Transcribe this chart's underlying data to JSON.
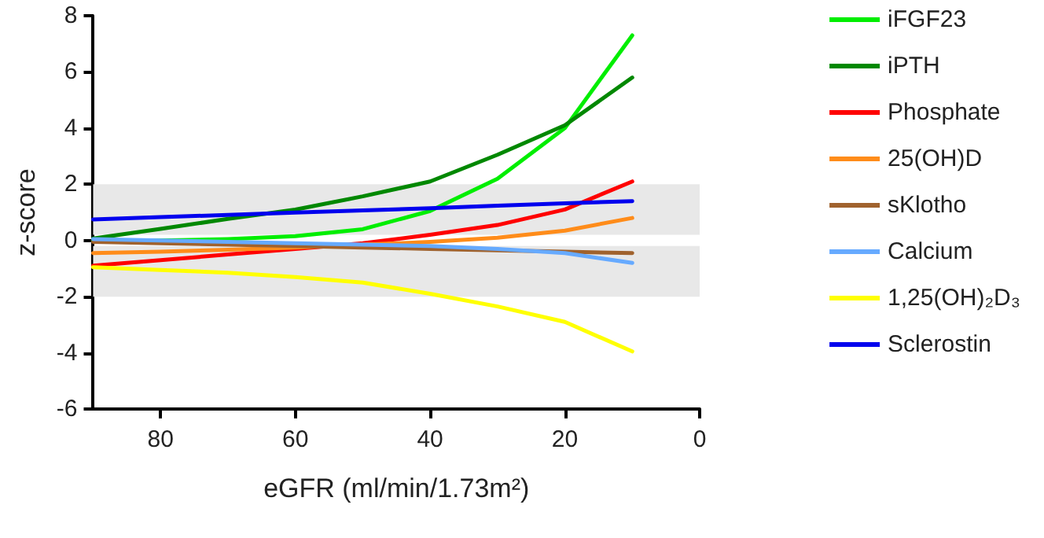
{
  "chart_data": {
    "type": "line",
    "xlabel": "eGFR (ml/min/1.73m²)",
    "ylabel": "z-score",
    "x": [
      90,
      80,
      70,
      60,
      50,
      40,
      30,
      20,
      10
    ],
    "xlim": [
      90,
      0
    ],
    "xticks": [
      80,
      60,
      40,
      20,
      0
    ],
    "ylim": [
      -6,
      8
    ],
    "yticks": [
      -6,
      -4,
      -2,
      0,
      2,
      4,
      6,
      8
    ],
    "series": [
      {
        "name": "iFGF23",
        "color": "#00ee00",
        "values": [
          0.0,
          0.0,
          0.05,
          0.15,
          0.4,
          1.05,
          2.2,
          4.0,
          7.3
        ]
      },
      {
        "name": "iPTH",
        "color": "#008800",
        "values": [
          0.07,
          0.41,
          0.77,
          1.1,
          1.57,
          2.1,
          3.05,
          4.1,
          5.8
        ]
      },
      {
        "name": "Phosphate",
        "color": "#ff0000",
        "values": [
          -0.9,
          -0.7,
          -0.5,
          -0.3,
          -0.1,
          0.2,
          0.55,
          1.1,
          2.1
        ]
      },
      {
        "name": "25(OH)D",
        "color": "#ff8c1a",
        "values": [
          -0.45,
          -0.4,
          -0.33,
          -0.25,
          -0.15,
          -0.05,
          0.1,
          0.35,
          0.8
        ]
      },
      {
        "name": "sKlotho",
        "color": "#a0622d",
        "values": [
          -0.05,
          -0.1,
          -0.15,
          -0.2,
          -0.25,
          -0.3,
          -0.35,
          -0.4,
          -0.45
        ]
      },
      {
        "name": "Calcium",
        "color": "#66aaff",
        "values": [
          0.05,
          0.0,
          -0.05,
          -0.1,
          -0.15,
          -0.2,
          -0.3,
          -0.45,
          -0.8
        ]
      },
      {
        "name": "1,25(OH)₂D₃",
        "color": "#ffff00",
        "values": [
          -0.95,
          -1.05,
          -1.15,
          -1.3,
          -1.5,
          -1.9,
          -2.35,
          -2.9,
          -3.95
        ]
      },
      {
        "name": "Sclerostin",
        "color": "#0000ee",
        "values": [
          0.75,
          0.83,
          0.91,
          0.99,
          1.07,
          1.15,
          1.24,
          1.32,
          1.4
        ]
      }
    ],
    "bands": [
      {
        "axis": "y",
        "from": 0.2,
        "to": 2,
        "color": "#e8e8e8"
      },
      {
        "axis": "y",
        "from": -2,
        "to": -0.2,
        "color": "#e8e8e8"
      }
    ],
    "grid": false,
    "legend": "right",
    "marker": "none",
    "line_style": "solid"
  }
}
